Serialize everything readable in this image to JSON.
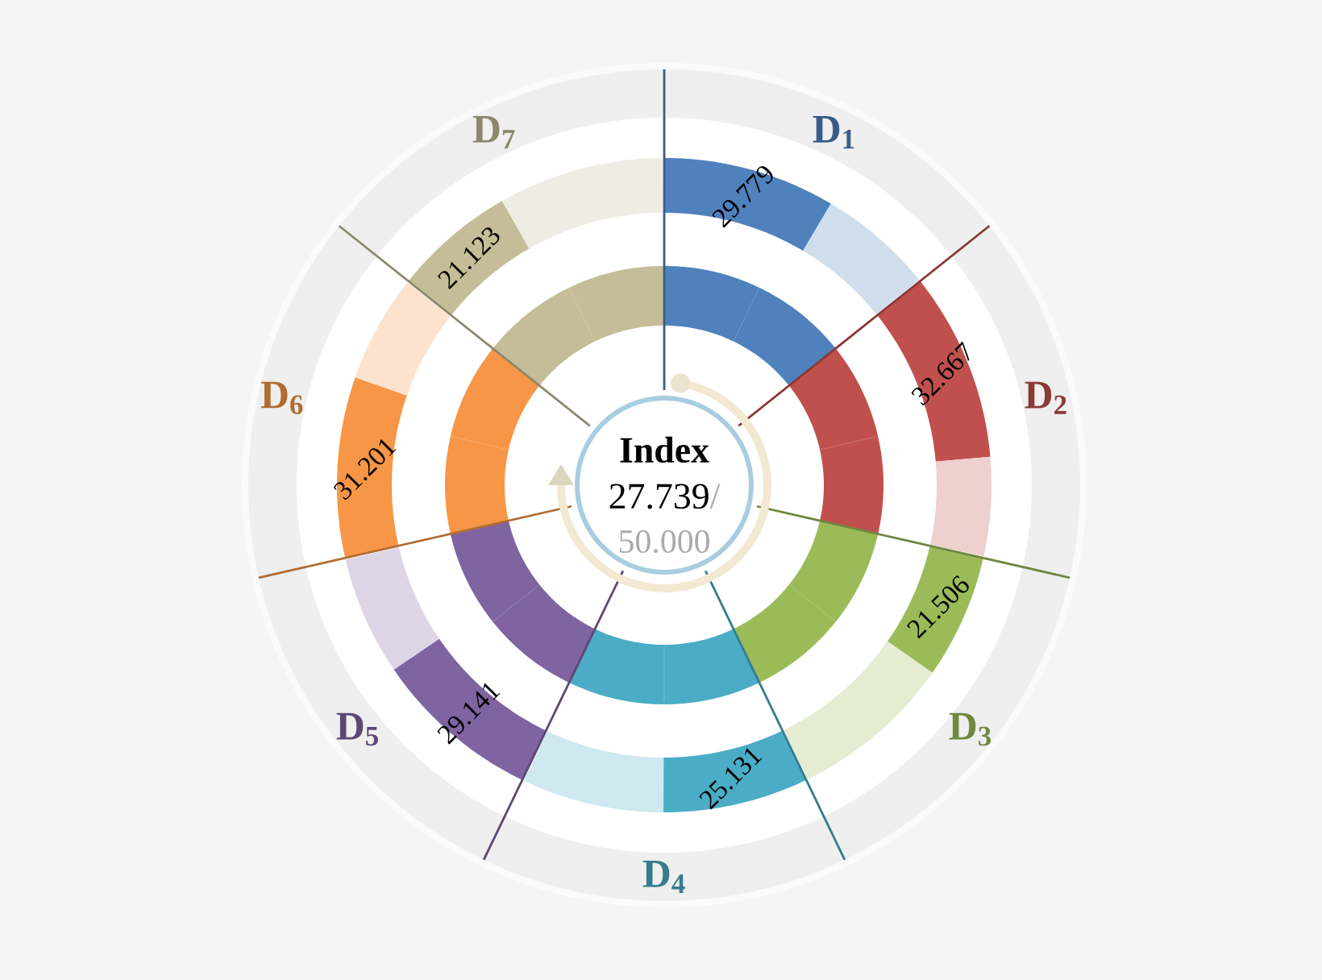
{
  "chart_data": {
    "type": "other",
    "title": "Index",
    "categories": [
      "D$_{1}$",
      "D$_{2}$",
      "D$_{3}$",
      "D$_{4}$",
      "D$_{5}$",
      "D$_{6}$",
      "D$_{7}$"
    ],
    "values": [
      29.779,
      32.667,
      21.506,
      25.131,
      29.141,
      31.201,
      21.123
    ],
    "colors": [
      "#4f81bd",
      "#c0504d",
      "#9bbb59",
      "#4bacc6",
      "#8064a2",
      "#f79646",
      "#c4bd97"
    ],
    "data_labels": true,
    "annotations": [
      "27.739",
      "/",
      "50.000"
    ]
  }
}
